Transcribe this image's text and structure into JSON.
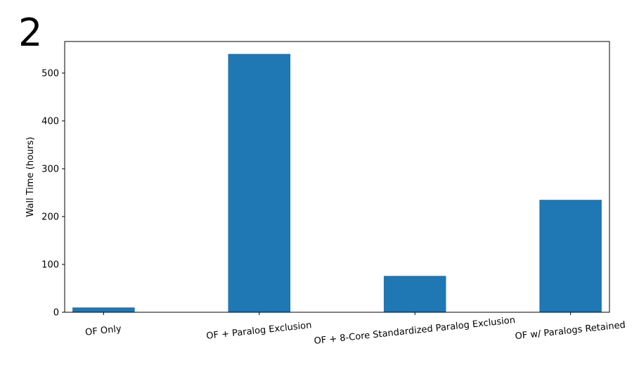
{
  "panel_label": "2",
  "chart_data": {
    "type": "bar",
    "title": "",
    "xlabel": "",
    "ylabel": "Wall Time (hours)",
    "categories": [
      "OF Only",
      "OF + Paralog Exclusion",
      "OF + 8-Core Standardized Paralog Exclusion",
      "OF w/ Paralogs Retained"
    ],
    "values": [
      10,
      540,
      76,
      235
    ],
    "ylim": [
      0,
      566
    ],
    "yticks": [
      0,
      100,
      200,
      300,
      400,
      500
    ],
    "bar_color": "#1f77b4",
    "grid": false,
    "legend": "none"
  }
}
